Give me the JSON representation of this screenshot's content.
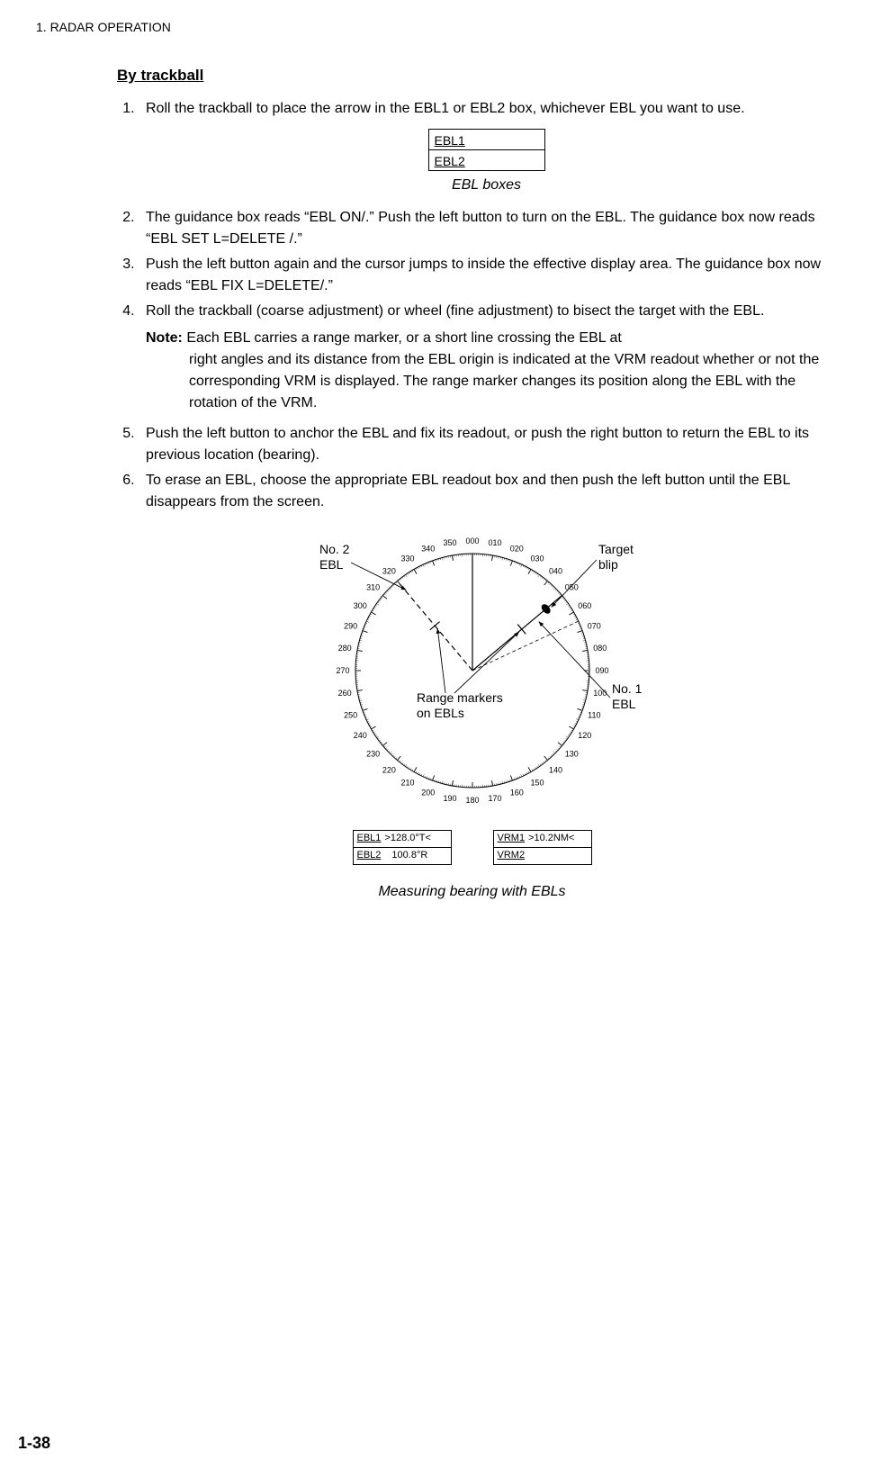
{
  "header": "1. RADAR OPERATION",
  "subtitle": "By trackball",
  "steps": {
    "s1": "Roll the trackball to place the arrow in the EBL1 or EBL2 box, whichever EBL you want to use.",
    "ebl_box1": "EBL1",
    "ebl_box2": "EBL2",
    "ebl_caption": "EBL boxes",
    "s2": "The guidance box reads “EBL ON/.” Push the left button to turn on the EBL. The guidance box now reads “EBL SET L=DELETE /.”",
    "s3": "Push the left button again and the cursor jumps to inside the effective display area. The guidance box now reads “EBL FIX L=DELETE/.”",
    "s4": "Roll the trackball (coarse adjustment) or wheel (fine adjustment) to bisect the target with the EBL.",
    "note_label": "Note:",
    "note_body": "Each EBL carries a range marker, or a short line crossing the EBL at right angles and its distance from the EBL origin is indicated at the VRM readout whether or not the corresponding VRM is displayed. The range marker changes its position along the EBL with the rotation of the VRM.",
    "s5": "Push the left button to anchor the EBL and fix its readout, or push the right button to return the EBL to its previous location (bearing).",
    "s6": "To erase an EBL, choose the appropriate EBL readout box and then push the left button until the EBL disappears from the screen."
  },
  "diagram": {
    "ticks": [
      "000",
      "010",
      "020",
      "030",
      "040",
      "050",
      "060",
      "070",
      "080",
      "090",
      "100",
      "110",
      "120",
      "130",
      "140",
      "150",
      "160",
      "170",
      "180",
      "190",
      "200",
      "210",
      "220",
      "230",
      "240",
      "250",
      "260",
      "270",
      "280",
      "290",
      "300",
      "310",
      "320",
      "330",
      "340",
      "350"
    ],
    "label_no2": "No. 2 EBL",
    "label_target": "Target blip",
    "label_range": "Range markers on EBLs",
    "label_no1": "No. 1 EBL",
    "caption": "Measuring bearing with EBLs",
    "compass_radius": 130,
    "tick_fontsize": 9,
    "label_fontsize": 14
  },
  "readouts": {
    "ebl1_lbl": "EBL1",
    "ebl1_val": ">128.0°T<",
    "ebl2_lbl": "EBL2",
    "ebl2_val": "100.8°R",
    "vrm1_lbl": "VRM1",
    "vrm1_val": ">10.2NM<",
    "vrm2_lbl": "VRM2",
    "vrm2_val": ""
  },
  "page_num": "1-38"
}
